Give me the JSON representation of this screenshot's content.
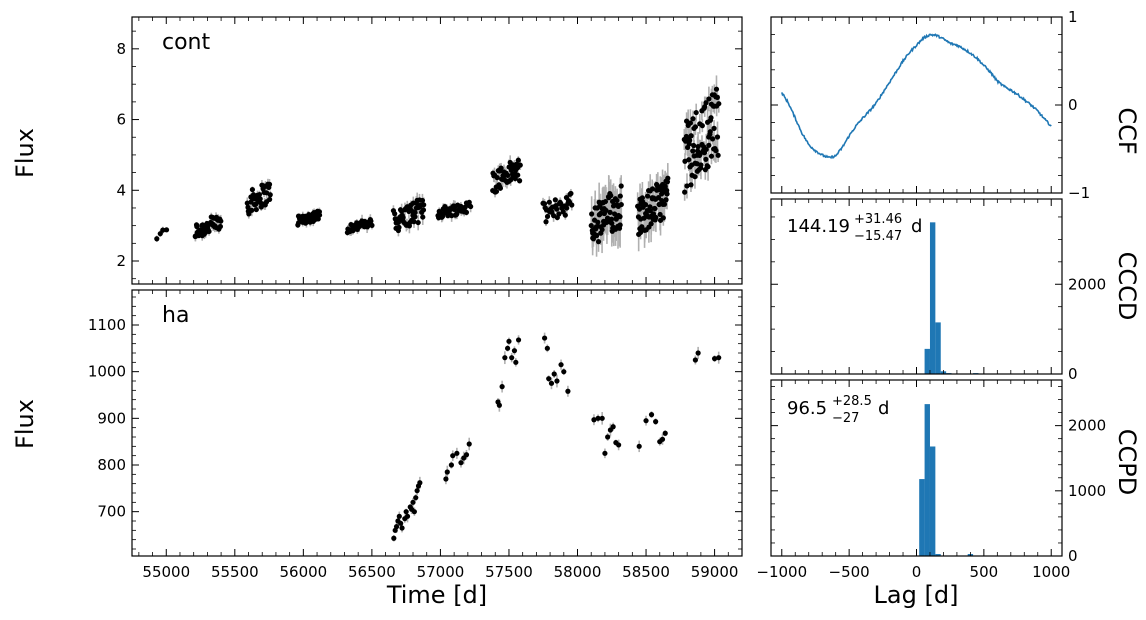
{
  "chart_data": [
    {
      "type": "scatter",
      "panel_label": "cont",
      "ylabel": "Flux",
      "xlim": [
        54750,
        59200
      ],
      "ylim": [
        1.35,
        8.9
      ],
      "xticks": [],
      "yticks": [
        2,
        4,
        6,
        8
      ],
      "clusters": [
        {
          "x0": 54930,
          "x1": 55000,
          "ymin": 2.55,
          "ymax": 2.95,
          "n": 4,
          "err": 0.08
        },
        {
          "x0": 55210,
          "x1": 55400,
          "ymin": 2.6,
          "ymax": 3.35,
          "n": 45,
          "err": 0.12
        },
        {
          "x0": 55590,
          "x1": 55760,
          "ymin": 3.3,
          "ymax": 4.3,
          "n": 40,
          "err": 0.12
        },
        {
          "x0": 55960,
          "x1": 56120,
          "ymin": 3.0,
          "ymax": 3.45,
          "n": 40,
          "err": 0.1
        },
        {
          "x0": 56320,
          "x1": 56500,
          "ymin": 2.8,
          "ymax": 3.2,
          "n": 30,
          "err": 0.12
        },
        {
          "x0": 56660,
          "x1": 56880,
          "ymin": 2.8,
          "ymax": 3.8,
          "n": 50,
          "err": 0.15
        },
        {
          "x0": 56980,
          "x1": 57220,
          "ymin": 3.2,
          "ymax": 3.7,
          "n": 45,
          "err": 0.12
        },
        {
          "x0": 57380,
          "x1": 57580,
          "ymin": 3.9,
          "ymax": 4.95,
          "n": 45,
          "err": 0.15
        },
        {
          "x0": 57750,
          "x1": 57960,
          "ymin": 3.05,
          "ymax": 3.95,
          "n": 35,
          "err": 0.12
        },
        {
          "x0": 58100,
          "x1": 58320,
          "ymin": 2.3,
          "ymax": 4.2,
          "n": 70,
          "err": 0.45
        },
        {
          "x0": 58440,
          "x1": 58660,
          "ymin": 2.7,
          "ymax": 4.4,
          "n": 70,
          "err": 0.35
        },
        {
          "x0": 58780,
          "x1": 59030,
          "ymin": 3.9,
          "ymax": 7.0,
          "n": 80,
          "err": 0.3
        }
      ]
    },
    {
      "type": "scatter",
      "panel_label": "ha",
      "xlabel": "Time [d]",
      "ylabel": "Flux",
      "xlim": [
        54750,
        59200
      ],
      "ylim": [
        605,
        1175
      ],
      "xticks": [
        55000,
        55500,
        56000,
        56500,
        57000,
        57500,
        58000,
        58500,
        59000
      ],
      "yticks": [
        700,
        800,
        900,
        1000,
        1100
      ],
      "points": [
        [
          56660,
          643
        ],
        [
          56670,
          660
        ],
        [
          56680,
          668
        ],
        [
          56690,
          680
        ],
        [
          56700,
          690
        ],
        [
          56710,
          675
        ],
        [
          56720,
          665
        ],
        [
          56740,
          685
        ],
        [
          56750,
          700
        ],
        [
          56760,
          690
        ],
        [
          56780,
          710
        ],
        [
          56790,
          705
        ],
        [
          56800,
          720
        ],
        [
          56810,
          700
        ],
        [
          56820,
          730
        ],
        [
          56830,
          745
        ],
        [
          56840,
          755
        ],
        [
          56850,
          762
        ],
        [
          57040,
          770
        ],
        [
          57050,
          785
        ],
        [
          57080,
          800
        ],
        [
          57090,
          820
        ],
        [
          57120,
          825
        ],
        [
          57150,
          805
        ],
        [
          57170,
          815
        ],
        [
          57190,
          822
        ],
        [
          57210,
          845
        ],
        [
          57420,
          935
        ],
        [
          57430,
          928
        ],
        [
          57450,
          968
        ],
        [
          57470,
          1030
        ],
        [
          57490,
          1050
        ],
        [
          57500,
          1065
        ],
        [
          57520,
          1030
        ],
        [
          57540,
          1045
        ],
        [
          57550,
          1020
        ],
        [
          57570,
          1068
        ],
        [
          57760,
          1072
        ],
        [
          57780,
          1050
        ],
        [
          57790,
          985
        ],
        [
          57810,
          975
        ],
        [
          57830,
          995
        ],
        [
          57850,
          980
        ],
        [
          57880,
          1015
        ],
        [
          57900,
          1000
        ],
        [
          57930,
          958
        ],
        [
          58120,
          897
        ],
        [
          58150,
          900
        ],
        [
          58180,
          900
        ],
        [
          58200,
          825
        ],
        [
          58220,
          860
        ],
        [
          58240,
          875
        ],
        [
          58260,
          882
        ],
        [
          58280,
          848
        ],
        [
          58300,
          843
        ],
        [
          58450,
          840
        ],
        [
          58500,
          895
        ],
        [
          58540,
          908
        ],
        [
          58570,
          893
        ],
        [
          58600,
          850
        ],
        [
          58620,
          855
        ],
        [
          58640,
          868
        ],
        [
          58860,
          1025
        ],
        [
          58880,
          1040
        ],
        [
          59000,
          1028
        ],
        [
          59030,
          1030
        ]
      ]
    },
    {
      "type": "line",
      "ylabel": "CCF",
      "xlim": [
        -1080,
        1080
      ],
      "ylim": [
        -1,
        1
      ],
      "yticks": [
        -1,
        0,
        1
      ],
      "x": [
        -1000,
        -950,
        -900,
        -850,
        -800,
        -750,
        -700,
        -650,
        -600,
        -550,
        -500,
        -450,
        -400,
        -350,
        -300,
        -250,
        -200,
        -150,
        -100,
        -50,
        0,
        50,
        100,
        150,
        200,
        250,
        300,
        350,
        400,
        450,
        500,
        550,
        600,
        650,
        700,
        750,
        800,
        850,
        900,
        950,
        1000
      ],
      "y": [
        0.14,
        0.02,
        -0.15,
        -0.32,
        -0.45,
        -0.52,
        -0.57,
        -0.6,
        -0.58,
        -0.48,
        -0.35,
        -0.24,
        -0.15,
        -0.07,
        0.02,
        0.14,
        0.26,
        0.38,
        0.5,
        0.6,
        0.68,
        0.76,
        0.8,
        0.79,
        0.75,
        0.7,
        0.68,
        0.64,
        0.59,
        0.53,
        0.45,
        0.37,
        0.27,
        0.21,
        0.17,
        0.12,
        0.06,
        0.0,
        -0.07,
        -0.16,
        -0.24
      ]
    },
    {
      "type": "bar",
      "ylabel": "CCCD",
      "annotation_main": "144.19",
      "annotation_sup": "+31.46",
      "annotation_sub": "−15.47",
      "annotation_unit": "d",
      "xlim": [
        -1080,
        1080
      ],
      "ylim": [
        0,
        3900
      ],
      "yticks": [
        0,
        2000
      ],
      "bin_width": 40,
      "bins": [
        [
          80,
          560
        ],
        [
          120,
          3380
        ],
        [
          160,
          1150
        ],
        [
          200,
          60
        ],
        [
          240,
          20
        ],
        [
          440,
          20
        ]
      ]
    },
    {
      "type": "bar",
      "ylabel": "CCPD",
      "xlabel": "Lag [d]",
      "annotation_main": "96.5",
      "annotation_sup": "+28.5",
      "annotation_sub": "−27",
      "annotation_unit": "d",
      "xlim": [
        -1080,
        1080
      ],
      "ylim": [
        0,
        2700
      ],
      "yticks": [
        0,
        1000,
        2000
      ],
      "xticks": [
        -1000,
        -500,
        0,
        500,
        1000
      ],
      "bin_width": 40,
      "bins": [
        [
          40,
          1180
        ],
        [
          80,
          2330
        ],
        [
          120,
          1680
        ],
        [
          160,
          30
        ],
        [
          400,
          30
        ]
      ]
    }
  ]
}
